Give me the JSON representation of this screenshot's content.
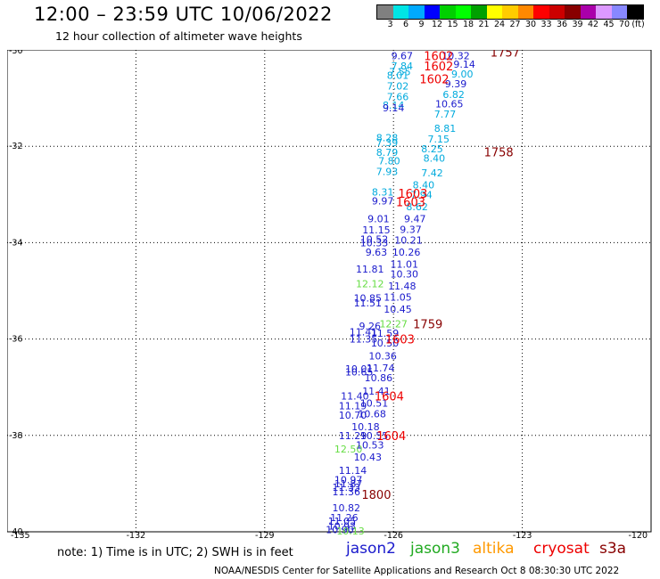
{
  "header": {
    "title": "12:00 – 23:59 UTC 10/06/2022",
    "subtitle": "12 hour collection of altimeter wave heights"
  },
  "colorbar": {
    "colors": [
      "#808080",
      "#00e5e5",
      "#00aaff",
      "#0000ff",
      "#00d000",
      "#00ff00",
      "#00a000",
      "#ffff00",
      "#ffcc00",
      "#ff8800",
      "#ff0000",
      "#cc0000",
      "#880000",
      "#aa00aa",
      "#dd99ff",
      "#8888ff",
      "#000000"
    ],
    "labels": [
      "3",
      "6",
      "9",
      "12",
      "15",
      "18",
      "21",
      "24",
      "27",
      "30",
      "33",
      "36",
      "39",
      "42",
      "45",
      "70",
      "(ft)"
    ]
  },
  "map": {
    "lon_ticks": [
      -135,
      -132,
      -129,
      -126,
      -123,
      -120
    ],
    "lat_ticks": [
      -30,
      -32,
      -34,
      -36,
      -38,
      -40
    ],
    "lon_labels": [
      "-135",
      "-132",
      "-129",
      "-126",
      "-123",
      "-120"
    ],
    "lat_labels": [
      "-30",
      "-32",
      "-34",
      "-36",
      "-38",
      "-40"
    ],
    "lon_range": [
      -135,
      -120
    ],
    "lat_range": [
      -40,
      -30
    ]
  },
  "colors": {
    "jason2": "#1a1acc",
    "jason3": "#22aa22",
    "altika": "#ff9900",
    "cryosat": "#ee0000",
    "s3a": "#880000",
    "cyan": "#00aadd",
    "green": "#66dd44",
    "time_red": "#ee0000",
    "time_dark": "#880000"
  },
  "wave_labels": [
    {
      "text": "9.67",
      "lon": -125.8,
      "lat": -30.12,
      "c": "jason2"
    },
    {
      "text": "7.84",
      "lon": -125.8,
      "lat": -30.33,
      "c": "cyan"
    },
    {
      "text": "7.55",
      "lon": -125.85,
      "lat": -30.45,
      "c": "cyan"
    },
    {
      "text": "8.01",
      "lon": -125.9,
      "lat": -30.53,
      "c": "cyan"
    },
    {
      "text": "7.02",
      "lon": -125.9,
      "lat": -30.75,
      "c": "cyan"
    },
    {
      "text": "7.66",
      "lon": -125.9,
      "lat": -30.97,
      "c": "cyan"
    },
    {
      "text": "8.14",
      "lon": -126.0,
      "lat": -31.15,
      "c": "cyan"
    },
    {
      "text": "9.14",
      "lon": -126.0,
      "lat": -31.2,
      "c": "jason2"
    },
    {
      "text": "8.28",
      "lon": -126.15,
      "lat": -31.82,
      "c": "cyan"
    },
    {
      "text": "7.39",
      "lon": -126.15,
      "lat": -31.92,
      "c": "cyan"
    },
    {
      "text": "8.79",
      "lon": -126.15,
      "lat": -32.13,
      "c": "cyan"
    },
    {
      "text": "7.80",
      "lon": -126.1,
      "lat": -32.3,
      "c": "cyan"
    },
    {
      "text": "7.93",
      "lon": -126.15,
      "lat": -32.52,
      "c": "cyan"
    },
    {
      "text": "8.31",
      "lon": -126.25,
      "lat": -32.95,
      "c": "cyan"
    },
    {
      "text": "9.97",
      "lon": -126.25,
      "lat": -33.13,
      "c": "jason2"
    },
    {
      "text": "9.01",
      "lon": -126.35,
      "lat": -33.5,
      "c": "jason2"
    },
    {
      "text": "11.15",
      "lon": -126.4,
      "lat": -33.73,
      "c": "jason2"
    },
    {
      "text": "10.52",
      "lon": -126.45,
      "lat": -33.93,
      "c": "jason2"
    },
    {
      "text": "10.33",
      "lon": -126.45,
      "lat": -34.0,
      "c": "jason2"
    },
    {
      "text": "9.63",
      "lon": -126.4,
      "lat": -34.2,
      "c": "jason2"
    },
    {
      "text": "11.81",
      "lon": -126.55,
      "lat": -34.55,
      "c": "jason2"
    },
    {
      "text": "12.12",
      "lon": -126.55,
      "lat": -34.85,
      "c": "green"
    },
    {
      "text": "10.85",
      "lon": -126.6,
      "lat": -35.15,
      "c": "jason2"
    },
    {
      "text": "11.51",
      "lon": -126.6,
      "lat": -35.25,
      "c": "jason2"
    },
    {
      "text": "9.26",
      "lon": -126.55,
      "lat": -35.73,
      "c": "jason2"
    },
    {
      "text": "11.41",
      "lon": -126.7,
      "lat": -35.85,
      "c": "jason2"
    },
    {
      "text": "11.35",
      "lon": -126.7,
      "lat": -36.0,
      "c": "jason2"
    },
    {
      "text": "10.01",
      "lon": -126.8,
      "lat": -36.62,
      "c": "jason2"
    },
    {
      "text": "10.65",
      "lon": -126.8,
      "lat": -36.68,
      "c": "jason2"
    },
    {
      "text": "11.40",
      "lon": -126.9,
      "lat": -37.18,
      "c": "jason2"
    },
    {
      "text": "11.19",
      "lon": -126.95,
      "lat": -37.38,
      "c": "jason2"
    },
    {
      "text": "10.70",
      "lon": -126.95,
      "lat": -37.58,
      "c": "jason2"
    },
    {
      "text": "10.18",
      "lon": -126.65,
      "lat": -37.82,
      "c": "jason2"
    },
    {
      "text": "11.29",
      "lon": -126.95,
      "lat": -38.0,
      "c": "jason2"
    },
    {
      "text": "10.55",
      "lon": -126.45,
      "lat": -38.0,
      "c": "jason2"
    },
    {
      "text": "12.50",
      "lon": -127.05,
      "lat": -38.28,
      "c": "green"
    },
    {
      "text": "10.53",
      "lon": -126.55,
      "lat": -38.2,
      "c": "jason2"
    },
    {
      "text": "10.43",
      "lon": -126.6,
      "lat": -38.45,
      "c": "jason2"
    },
    {
      "text": "11.14",
      "lon": -126.95,
      "lat": -38.72,
      "c": "jason2"
    },
    {
      "text": "10.97",
      "lon": -127.05,
      "lat": -38.92,
      "c": "jason2"
    },
    {
      "text": "11.87",
      "lon": -127.05,
      "lat": -39.0,
      "c": "jason2"
    },
    {
      "text": "11.33",
      "lon": -127.1,
      "lat": -39.08,
      "c": "jason2"
    },
    {
      "text": "11.36",
      "lon": -127.1,
      "lat": -39.17,
      "c": "jason2"
    },
    {
      "text": "10.82",
      "lon": -127.1,
      "lat": -39.5,
      "c": "jason2"
    },
    {
      "text": "11.26",
      "lon": -127.15,
      "lat": -39.7,
      "c": "jason2"
    },
    {
      "text": "11.05",
      "lon": -127.2,
      "lat": -39.78,
      "c": "jason2"
    },
    {
      "text": "10.93",
      "lon": -127.2,
      "lat": -39.88,
      "c": "jason2"
    },
    {
      "text": "10.90",
      "lon": -127.25,
      "lat": -39.95,
      "c": "jason2"
    },
    {
      "text": "10.13",
      "lon": -127.0,
      "lat": -39.98,
      "c": "green"
    },
    {
      "text": "10.32",
      "lon": -124.55,
      "lat": -30.12,
      "c": "jason2"
    },
    {
      "text": "9.14",
      "lon": -124.35,
      "lat": -30.3,
      "c": "jason2"
    },
    {
      "text": "9.00",
      "lon": -124.4,
      "lat": -30.5,
      "c": "cyan"
    },
    {
      "text": "9.39",
      "lon": -124.55,
      "lat": -30.7,
      "c": "jason2"
    },
    {
      "text": "6.82",
      "lon": -124.6,
      "lat": -30.92,
      "c": "cyan"
    },
    {
      "text": "10.65",
      "lon": -124.7,
      "lat": -31.12,
      "c": "jason2"
    },
    {
      "text": "7.77",
      "lon": -124.8,
      "lat": -31.33,
      "c": "cyan"
    },
    {
      "text": "8.81",
      "lon": -124.8,
      "lat": -31.63,
      "c": "cyan"
    },
    {
      "text": "7.15",
      "lon": -124.95,
      "lat": -31.85,
      "c": "cyan"
    },
    {
      "text": "8.25",
      "lon": -125.1,
      "lat": -32.05,
      "c": "cyan"
    },
    {
      "text": "8.40",
      "lon": -125.05,
      "lat": -32.25,
      "c": "cyan"
    },
    {
      "text": "7.42",
      "lon": -125.1,
      "lat": -32.55,
      "c": "cyan"
    },
    {
      "text": "8.40",
      "lon": -125.3,
      "lat": -32.8,
      "c": "cyan"
    },
    {
      "text": "7.94",
      "lon": -125.35,
      "lat": -33.0,
      "c": "cyan"
    },
    {
      "text": "8.62",
      "lon": -125.45,
      "lat": -33.25,
      "c": "cyan"
    },
    {
      "text": "9.47",
      "lon": -125.5,
      "lat": -33.5,
      "c": "jason2"
    },
    {
      "text": "9.37",
      "lon": -125.6,
      "lat": -33.72,
      "c": "jason2"
    },
    {
      "text": "10.21",
      "lon": -125.65,
      "lat": -33.95,
      "c": "jason2"
    },
    {
      "text": "10.26",
      "lon": -125.7,
      "lat": -34.2,
      "c": "jason2"
    },
    {
      "text": "11.01",
      "lon": -125.75,
      "lat": -34.45,
      "c": "jason2"
    },
    {
      "text": "10.30",
      "lon": -125.75,
      "lat": -34.65,
      "c": "jason2"
    },
    {
      "text": "11.48",
      "lon": -125.8,
      "lat": -34.9,
      "c": "jason2"
    },
    {
      "text": "11.05",
      "lon": -125.9,
      "lat": -35.13,
      "c": "jason2"
    },
    {
      "text": "10.45",
      "lon": -125.9,
      "lat": -35.38,
      "c": "jason2"
    },
    {
      "text": "12.27",
      "lon": -126.0,
      "lat": -35.68,
      "c": "green"
    },
    {
      "text": "11.59",
      "lon": -126.2,
      "lat": -35.88,
      "c": "jason2"
    },
    {
      "text": "10.50",
      "lon": -126.2,
      "lat": -36.08,
      "c": "jason2"
    },
    {
      "text": "10.36",
      "lon": -126.25,
      "lat": -36.35,
      "c": "jason2"
    },
    {
      "text": "11.74",
      "lon": -126.3,
      "lat": -36.6,
      "c": "jason2"
    },
    {
      "text": "10.86",
      "lon": -126.35,
      "lat": -36.8,
      "c": "jason2"
    },
    {
      "text": "11.41",
      "lon": -126.4,
      "lat": -37.08,
      "c": "jason2"
    },
    {
      "text": "10.51",
      "lon": -126.45,
      "lat": -37.33,
      "c": "jason2"
    },
    {
      "text": "10.68",
      "lon": -126.5,
      "lat": -37.55,
      "c": "jason2"
    }
  ],
  "time_labels": [
    {
      "text": "1602",
      "lon": -124.95,
      "lat": -30.12,
      "c": "time_red"
    },
    {
      "text": "1602",
      "lon": -124.95,
      "lat": -30.33,
      "c": "time_red"
    },
    {
      "text": "1602",
      "lon": -125.05,
      "lat": -30.6,
      "c": "time_red"
    },
    {
      "text": "1757",
      "lon": -123.4,
      "lat": -30.05,
      "c": "time_dark"
    },
    {
      "text": "1758",
      "lon": -123.55,
      "lat": -32.12,
      "c": "time_dark"
    },
    {
      "text": "1603",
      "lon": -125.55,
      "lat": -32.98,
      "c": "time_red"
    },
    {
      "text": "1603",
      "lon": -125.6,
      "lat": -33.15,
      "c": "time_red"
    },
    {
      "text": "1759",
      "lon": -125.2,
      "lat": -35.68,
      "c": "time_dark"
    },
    {
      "text": "1603",
      "lon": -125.85,
      "lat": -36.0,
      "c": "time_red"
    },
    {
      "text": "1604",
      "lon": -126.1,
      "lat": -37.18,
      "c": "time_red"
    },
    {
      "text": "1604",
      "lon": -126.05,
      "lat": -38.0,
      "c": "time_red"
    },
    {
      "text": "1800",
      "lon": -126.4,
      "lat": -39.22,
      "c": "time_dark"
    }
  ],
  "footer": {
    "note": "note: 1) Time is in UTC; 2) SWH is in feet",
    "credit": "NOAA/NESDIS Center for Satellite Applications and Research   Oct  8 08:30:30 UTC 2022"
  },
  "legend": [
    {
      "label": "jason2",
      "c": "jason2"
    },
    {
      "label": "jason3",
      "c": "jason3"
    },
    {
      "label": "altika",
      "c": "altika"
    },
    {
      "label": "cryosat",
      "c": "cryosat"
    },
    {
      "label": "s3a",
      "c": "s3a"
    }
  ]
}
